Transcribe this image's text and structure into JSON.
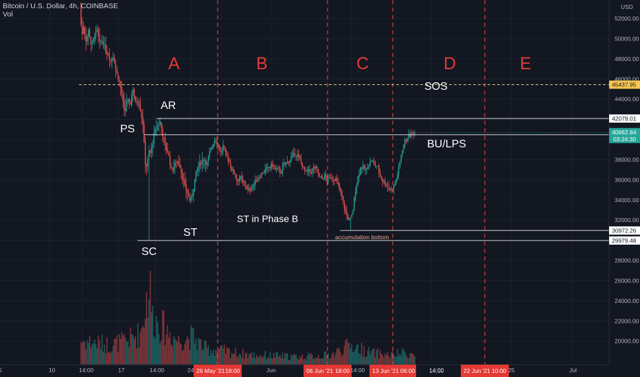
{
  "header": {
    "symbol": "Bitcoin / U.S. Dollar, 4h, COINBASE",
    "volume_label": "Vol"
  },
  "currency": "USD",
  "colors": {
    "background": "#131722",
    "up": "#26a69a",
    "down": "#ef5350",
    "phase": "#e53935",
    "level_line": "#d1d4dc",
    "sos_line": "#d6d27a",
    "tag_red": "#e53935"
  },
  "chart_data": {
    "type": "candlestick",
    "title": "Bitcoin / U.S. Dollar, 4h, COINBASE",
    "y_ticks": [
      20000,
      22000,
      24000,
      26000,
      28000,
      30000,
      32000,
      34000,
      36000,
      38000,
      40000,
      42000,
      44000,
      46000,
      48000,
      50000,
      52000
    ],
    "ylim": [
      18400,
      53800
    ],
    "x_ticks": [
      "5",
      "10",
      "14:00",
      "17",
      "14:00",
      "24",
      "Jun",
      "14:00",
      "14:00",
      "25",
      "Jul"
    ],
    "x_time_tags": [
      "26 May '21",
      "18:00",
      "06 Jun '21",
      "18:00",
      "13 Jun '21",
      "06:00",
      "14:00",
      "22 Jun '21",
      "10:00"
    ],
    "price_path": [
      [
        118,
        53500
      ],
      [
        121,
        50000
      ],
      [
        123,
        51400
      ],
      [
        127,
        49800
      ],
      [
        131,
        50900
      ],
      [
        135,
        49200
      ],
      [
        139,
        50300
      ],
      [
        143,
        50900
      ],
      [
        147,
        49400
      ],
      [
        151,
        49900
      ],
      [
        155,
        48900
      ],
      [
        159,
        48500
      ],
      [
        163,
        47800
      ],
      [
        167,
        48300
      ],
      [
        171,
        46700
      ],
      [
        175,
        45900
      ],
      [
        179,
        44600
      ],
      [
        183,
        42600
      ],
      [
        187,
        44100
      ],
      [
        191,
        43200
      ],
      [
        195,
        45200
      ],
      [
        199,
        43600
      ],
      [
        203,
        44000
      ],
      [
        207,
        42700
      ],
      [
        210,
        41500
      ],
      [
        213,
        37800
      ],
      [
        216,
        37200
      ],
      [
        218,
        38900
      ],
      [
        221,
        38600
      ],
      [
        224,
        39700
      ],
      [
        227,
        40800
      ],
      [
        231,
        41300
      ],
      [
        235,
        41700
      ],
      [
        239,
        40400
      ],
      [
        243,
        39300
      ],
      [
        247,
        38600
      ],
      [
        251,
        37000
      ],
      [
        255,
        37300
      ],
      [
        259,
        37900
      ],
      [
        263,
        37600
      ],
      [
        267,
        36400
      ],
      [
        271,
        35300
      ],
      [
        275,
        34600
      ],
      [
        279,
        33800
      ],
      [
        283,
        35000
      ],
      [
        287,
        36600
      ],
      [
        291,
        37400
      ],
      [
        295,
        37800
      ],
      [
        299,
        38100
      ],
      [
        303,
        37500
      ],
      [
        307,
        38700
      ],
      [
        311,
        39400
      ],
      [
        315,
        40100
      ],
      [
        319,
        39600
      ],
      [
        323,
        38600
      ],
      [
        327,
        39400
      ],
      [
        331,
        38400
      ],
      [
        335,
        37900
      ],
      [
        339,
        37100
      ],
      [
        343,
        36700
      ],
      [
        347,
        35900
      ],
      [
        351,
        36300
      ],
      [
        355,
        35700
      ],
      [
        359,
        35600
      ],
      [
        363,
        34900
      ],
      [
        367,
        35100
      ],
      [
        371,
        35600
      ],
      [
        375,
        35900
      ],
      [
        379,
        36300
      ],
      [
        383,
        36600
      ],
      [
        387,
        36900
      ],
      [
        391,
        37100
      ],
      [
        395,
        37300
      ],
      [
        399,
        37500
      ],
      [
        403,
        36900
      ],
      [
        407,
        37100
      ],
      [
        411,
        36700
      ],
      [
        415,
        37500
      ],
      [
        419,
        37700
      ],
      [
        423,
        37900
      ],
      [
        427,
        38300
      ],
      [
        431,
        38600
      ],
      [
        435,
        38400
      ],
      [
        439,
        37900
      ],
      [
        443,
        37300
      ],
      [
        447,
        36700
      ],
      [
        451,
        36900
      ],
      [
        455,
        36800
      ],
      [
        459,
        37200
      ],
      [
        463,
        37100
      ],
      [
        467,
        36300
      ],
      [
        471,
        36100
      ],
      [
        475,
        36400
      ],
      [
        479,
        35900
      ],
      [
        483,
        36300
      ],
      [
        487,
        36100
      ],
      [
        491,
        36000
      ],
      [
        495,
        35300
      ],
      [
        499,
        34500
      ],
      [
        503,
        33300
      ],
      [
        507,
        32400
      ],
      [
        511,
        31900
      ],
      [
        515,
        32600
      ],
      [
        519,
        34800
      ],
      [
        523,
        36300
      ],
      [
        527,
        37300
      ],
      [
        531,
        37100
      ],
      [
        535,
        36900
      ],
      [
        539,
        37600
      ],
      [
        543,
        37900
      ],
      [
        547,
        37500
      ],
      [
        551,
        37300
      ],
      [
        555,
        36600
      ],
      [
        559,
        35900
      ],
      [
        563,
        35700
      ],
      [
        567,
        35300
      ],
      [
        571,
        35000
      ],
      [
        575,
        35300
      ],
      [
        579,
        36100
      ],
      [
        583,
        37300
      ],
      [
        587,
        38900
      ],
      [
        591,
        39800
      ],
      [
        595,
        40200
      ],
      [
        599,
        40400
      ],
      [
        603,
        40660
      ]
    ],
    "volume_path": [
      [
        118,
        0.3
      ],
      [
        160,
        0.25
      ],
      [
        185,
        0.3
      ],
      [
        205,
        0.4
      ],
      [
        215,
        0.9
      ],
      [
        218,
        1.0
      ],
      [
        222,
        0.6
      ],
      [
        240,
        0.45
      ],
      [
        260,
        0.3
      ],
      [
        280,
        0.35
      ],
      [
        300,
        0.2
      ],
      [
        320,
        0.18
      ],
      [
        360,
        0.13
      ],
      [
        400,
        0.11
      ],
      [
        440,
        0.1
      ],
      [
        480,
        0.12
      ],
      [
        500,
        0.2
      ],
      [
        510,
        0.25
      ],
      [
        540,
        0.15
      ],
      [
        570,
        0.12
      ],
      [
        590,
        0.15
      ],
      [
        603,
        0.12
      ]
    ],
    "levels": [
      {
        "value": 42079.01,
        "label": "42079.01",
        "x_from": 228
      },
      {
        "value": 40465.74,
        "label": "40465.74",
        "x_from": 210
      },
      {
        "value": 30972.26,
        "label": "30972.26",
        "x_from": 495
      },
      {
        "value": 29979.48,
        "label": "29979.48",
        "x_from": 200
      }
    ],
    "sos_level": {
      "value": 45437.95,
      "label": "45437.95"
    },
    "current_price": {
      "value": 40662.84,
      "label": "40662.84",
      "countdown": "03:24:30"
    },
    "phase_labels": [
      "A",
      "B",
      "C",
      "D",
      "E"
    ],
    "annotations": [
      "AR",
      "PS",
      "SC",
      "ST",
      "ST in Phase B",
      "SOS",
      "BU/LPS",
      "accumulation bottom"
    ]
  }
}
